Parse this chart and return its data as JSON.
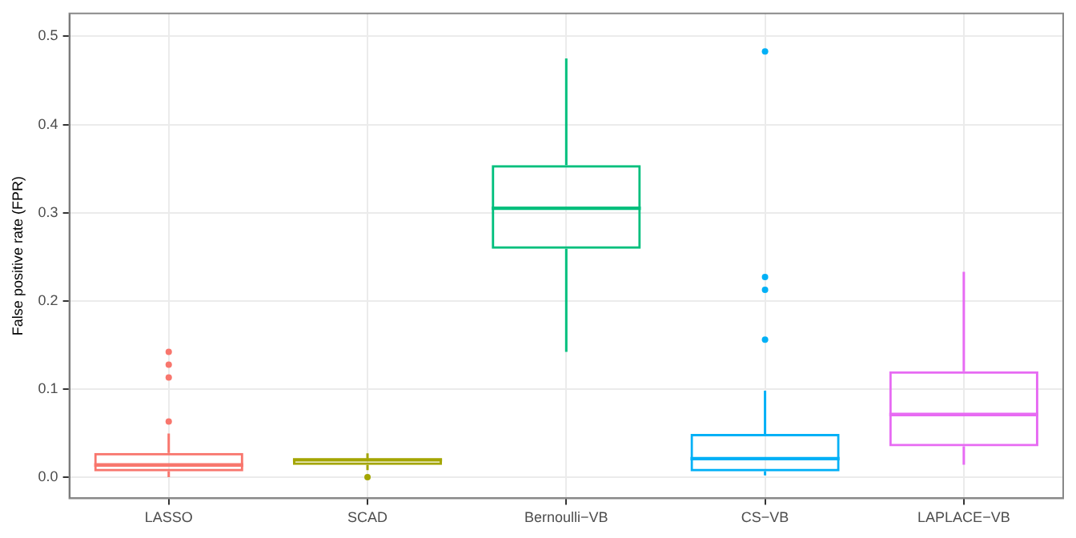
{
  "chart_data": {
    "type": "box",
    "ylabel": "False positive rate (FPR)",
    "categories": [
      "LASSO",
      "SCAD",
      "Bernoulli−VB",
      "CS−VB",
      "LAPLACE−VB"
    ],
    "colors": [
      "#f8766d",
      "#a3a500",
      "#00bf7d",
      "#00b0f6",
      "#e76bf3"
    ],
    "boxes": [
      {
        "low": 0,
        "q1": 0.0066,
        "median": 0.0138,
        "q3": 0.0275,
        "high": 0.0495,
        "outliers": [
          0.142,
          0.1275,
          0.113,
          0.063
        ]
      },
      {
        "low": 0.008,
        "q1": 0.0138,
        "median": 0.0196,
        "q3": 0.021,
        "high": 0.027,
        "outliers": [
          0
        ]
      },
      {
        "low": 0.142,
        "q1": 0.259,
        "median": 0.305,
        "q3": 0.354,
        "high": 0.475
      },
      {
        "low": 0.002,
        "q1": 0.0066,
        "median": 0.021,
        "q3": 0.049,
        "high": 0.098,
        "outliers": [
          0.483,
          0.227,
          0.2125,
          0.156
        ]
      },
      {
        "low": 0.014,
        "q1": 0.035,
        "median": 0.071,
        "q3": 0.12,
        "high": 0.233
      }
    ],
    "ylim": [
      -0.024,
      0.526
    ],
    "yticks": [
      {
        "value": 0,
        "label": "0.0"
      },
      {
        "value": 0.1,
        "label": "0.1"
      },
      {
        "value": 0.2,
        "label": "0.2"
      },
      {
        "value": 0.3,
        "label": "0.3"
      },
      {
        "value": 0.4,
        "label": "0.4"
      },
      {
        "value": 0.5,
        "label": "0.5"
      }
    ],
    "grid": true,
    "legend": false
  }
}
